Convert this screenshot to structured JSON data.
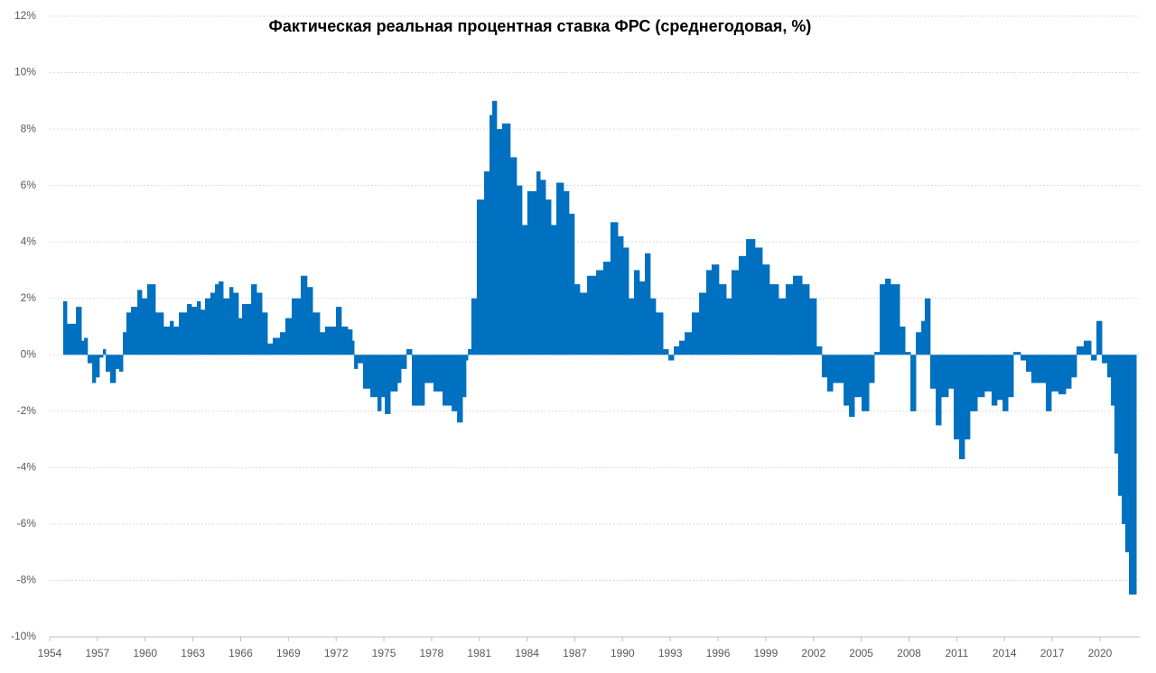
{
  "chart_data": {
    "type": "bar",
    "title": "Фактическая  реальная процентная ставка ФРС (среднегодовая, %)",
    "color": "#0070c0",
    "grid": true,
    "xlim": [
      1954,
      2022.5
    ],
    "xticks": [
      1954,
      1957,
      1960,
      1963,
      1966,
      1969,
      1972,
      1975,
      1978,
      1981,
      1984,
      1987,
      1990,
      1993,
      1996,
      1999,
      2002,
      2005,
      2008,
      2011,
      2014,
      2017,
      2020
    ],
    "ylim": [
      -10,
      12
    ],
    "yticks": [
      {
        "value": -10,
        "label": "-10%"
      },
      {
        "value": -8,
        "label": "-8%"
      },
      {
        "value": -6,
        "label": "-6%"
      },
      {
        "value": -4,
        "label": "-4%"
      },
      {
        "value": -2,
        "label": "-2%"
      },
      {
        "value": 0,
        "label": "0%"
      },
      {
        "value": 2,
        "label": "2%"
      },
      {
        "value": 4,
        "label": "4%"
      },
      {
        "value": 6,
        "label": "6%"
      },
      {
        "value": 8,
        "label": "8%"
      },
      {
        "value": 10,
        "label": "10%"
      },
      {
        "value": 12,
        "label": "12%"
      }
    ],
    "x": [
      1954.85,
      1955.08,
      1955.65,
      1955.99,
      1956.16,
      1956.38,
      1956.67,
      1956.89,
      1957.12,
      1957.35,
      1957.52,
      1957.8,
      1958.14,
      1958.37,
      1958.6,
      1958.82,
      1959.11,
      1959.51,
      1959.79,
      1960.13,
      1960.64,
      1960.87,
      1961.15,
      1961.55,
      1961.78,
      1962.12,
      1962.4,
      1962.63,
      1962.91,
      1963.25,
      1963.48,
      1963.76,
      1964.1,
      1964.39,
      1964.61,
      1964.9,
      1965.29,
      1965.52,
      1965.86,
      1966.09,
      1966.66,
      1967.0,
      1967.34,
      1967.68,
      1968.02,
      1968.47,
      1968.81,
      1969.21,
      1969.78,
      1970.17,
      1970.52,
      1970.97,
      1971.31,
      1971.99,
      1972.33,
      1972.73,
      1973.01,
      1973.13,
      1973.35,
      1973.69,
      1974.15,
      1974.6,
      1974.83,
      1975.06,
      1975.4,
      1975.85,
      1976.08,
      1976.42,
      1976.76,
      1977.1,
      1977.55,
      1978.12,
      1978.69,
      1979.26,
      1979.6,
      1979.94,
      1980.16,
      1980.28,
      1980.5,
      1980.84,
      1981.3,
      1981.64,
      1981.81,
      1982.09,
      1982.43,
      1982.94,
      1983.34,
      1983.68,
      1984.02,
      1984.59,
      1984.82,
      1985.16,
      1985.5,
      1985.84,
      1986.29,
      1986.63,
      1986.97,
      1987.31,
      1987.77,
      1988.34,
      1988.79,
      1989.24,
      1989.7,
      1990.04,
      1990.38,
      1990.72,
      1991.06,
      1991.4,
      1991.74,
      1992.08,
      1992.54,
      1992.88,
      1993.22,
      1993.56,
      1993.9,
      1994.35,
      1994.81,
      1995.26,
      1995.6,
      1996.05,
      1996.51,
      1996.85,
      1997.3,
      1997.76,
      1998.32,
      1998.78,
      1999.23,
      1999.8,
      2000.25,
      2000.71,
      2001.28,
      2001.73,
      2002.18,
      2002.52,
      2002.86,
      2003.21,
      2003.55,
      2003.89,
      2004.23,
      2004.57,
      2005.02,
      2005.48,
      2005.82,
      2006.16,
      2006.5,
      2006.84,
      2007.41,
      2007.75,
      2008.09,
      2008.43,
      2008.77,
      2008.99,
      2009.33,
      2009.68,
      2010.02,
      2010.47,
      2010.81,
      2011.15,
      2011.49,
      2011.83,
      2012.29,
      2012.74,
      2013.19,
      2013.53,
      2013.88,
      2014.22,
      2014.56,
      2014.78,
      2015.01,
      2015.35,
      2015.69,
      2016.15,
      2016.6,
      2016.94,
      2017.39,
      2017.85,
      2018.19,
      2018.53,
      2018.98,
      2019.44,
      2019.78,
      2020.12,
      2020.46,
      2020.69,
      2020.91,
      2021.14,
      2021.37,
      2021.59,
      2021.82,
      2022.05
    ],
    "values": [
      1.9,
      1.1,
      1.7,
      0.5,
      0.6,
      -0.3,
      -1.0,
      -0.8,
      -0.1,
      0.2,
      -0.6,
      -1.0,
      -0.5,
      -0.6,
      0.8,
      1.5,
      1.7,
      2.3,
      2.0,
      2.5,
      1.5,
      1.5,
      1.0,
      1.2,
      1.0,
      1.5,
      1.5,
      1.8,
      1.7,
      1.9,
      1.6,
      2.0,
      2.2,
      2.5,
      2.6,
      2.0,
      2.4,
      2.2,
      1.3,
      1.8,
      2.5,
      2.2,
      1.5,
      0.4,
      0.6,
      0.8,
      1.3,
      2.0,
      2.8,
      2.4,
      1.5,
      0.8,
      1.0,
      1.7,
      1.0,
      0.9,
      0.5,
      -0.5,
      -0.3,
      -1.2,
      -1.5,
      -2.0,
      -1.5,
      -2.1,
      -1.3,
      -1.0,
      -0.5,
      0.2,
      -1.8,
      -1.8,
      -1.0,
      -1.3,
      -1.8,
      -2.0,
      -2.4,
      -1.5,
      -0.2,
      0.2,
      2.0,
      5.5,
      6.5,
      8.5,
      9.0,
      8.0,
      8.2,
      7.0,
      6.0,
      4.6,
      5.8,
      6.5,
      6.2,
      5.5,
      4.6,
      6.1,
      5.8,
      5.0,
      2.5,
      2.2,
      2.8,
      3.0,
      3.3,
      4.7,
      4.2,
      3.8,
      2.0,
      3.0,
      2.6,
      3.6,
      2.0,
      1.5,
      0.2,
      -0.2,
      0.3,
      0.5,
      0.8,
      1.5,
      2.2,
      3.0,
      3.2,
      2.5,
      2.0,
      3.0,
      3.5,
      4.1,
      3.8,
      3.2,
      2.5,
      2.0,
      2.5,
      2.8,
      2.5,
      2.0,
      0.3,
      -0.8,
      -1.3,
      -1.0,
      -1.0,
      -1.8,
      -2.2,
      -1.5,
      -2.0,
      -1.0,
      0.1,
      2.5,
      2.7,
      2.5,
      1.0,
      0.1,
      -2.0,
      0.8,
      1.2,
      2.0,
      -1.2,
      -2.5,
      -1.5,
      -1.2,
      -3.0,
      -3.7,
      -3.0,
      -2.0,
      -1.5,
      -1.3,
      -1.8,
      -1.6,
      -2.0,
      -1.5,
      0.1,
      0.1,
      -0.2,
      -0.6,
      -1.0,
      -1.0,
      -2.0,
      -1.3,
      -1.4,
      -1.2,
      -0.8,
      0.3,
      0.5,
      -0.2,
      1.2,
      -0.3,
      -0.8,
      -1.8,
      -3.5,
      -5.0,
      -6.0,
      -7.0,
      -8.5,
      -8.5
    ]
  }
}
